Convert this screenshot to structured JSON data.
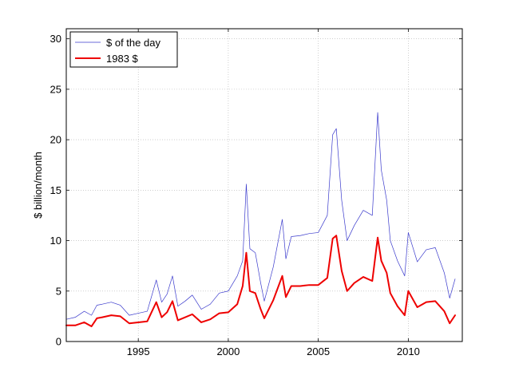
{
  "chart_data": {
    "type": "line",
    "title": "",
    "xlabel": "",
    "ylabel": "$ billion/month",
    "xlim": [
      1991.0,
      2013.0
    ],
    "ylim": [
      0,
      31
    ],
    "x_ticks": [
      1995,
      2000,
      2005,
      2010
    ],
    "y_ticks": [
      0,
      5,
      10,
      15,
      20,
      25,
      30
    ],
    "grid": true,
    "legend_position": "top-left",
    "series": [
      {
        "name": "$ of the day",
        "color": "#3a3acc",
        "line_width": "thin",
        "x": [
          1991.0,
          1991.5,
          1992.0,
          1992.4,
          1992.7,
          1993.0,
          1993.5,
          1994.0,
          1994.5,
          1995.0,
          1995.5,
          1996.0,
          1996.3,
          1996.6,
          1996.9,
          1997.2,
          1997.6,
          1998.0,
          1998.5,
          1999.0,
          1999.5,
          2000.0,
          2000.5,
          2000.8,
          2001.0,
          2001.2,
          2001.5,
          2001.8,
          2002.0,
          2002.5,
          2003.0,
          2003.2,
          2003.5,
          2004.0,
          2004.5,
          2005.0,
          2005.5,
          2005.8,
          2006.0,
          2006.3,
          2006.6,
          2007.0,
          2007.5,
          2008.0,
          2008.3,
          2008.5,
          2008.8,
          2009.0,
          2009.4,
          2009.8,
          2010.0,
          2010.5,
          2011.0,
          2011.5,
          2012.0,
          2012.3,
          2012.6
        ],
        "y": [
          2.2,
          2.4,
          3.0,
          2.6,
          3.6,
          3.7,
          3.9,
          3.6,
          2.6,
          2.8,
          3.0,
          6.1,
          3.9,
          4.7,
          6.5,
          3.5,
          4.0,
          4.6,
          3.2,
          3.7,
          4.8,
          5.0,
          6.5,
          8.0,
          15.6,
          9.2,
          8.8,
          5.8,
          4.0,
          7.4,
          12.1,
          8.2,
          10.4,
          10.5,
          10.7,
          10.8,
          12.5,
          20.5,
          21.1,
          14.0,
          10.0,
          11.5,
          13.0,
          12.5,
          22.7,
          17.0,
          14.0,
          10.0,
          8.0,
          6.5,
          10.8,
          7.9,
          9.1,
          9.3,
          6.8,
          4.3,
          6.2
        ]
      },
      {
        "name": "1983 $",
        "color": "#ee0000",
        "line_width": "thick",
        "x": [
          1991.0,
          1991.5,
          1992.0,
          1992.4,
          1992.7,
          1993.0,
          1993.5,
          1994.0,
          1994.5,
          1995.0,
          1995.5,
          1996.0,
          1996.3,
          1996.6,
          1996.9,
          1997.2,
          1997.6,
          1998.0,
          1998.5,
          1999.0,
          1999.5,
          2000.0,
          2000.5,
          2000.8,
          2001.0,
          2001.2,
          2001.5,
          2001.8,
          2002.0,
          2002.5,
          2003.0,
          2003.2,
          2003.5,
          2004.0,
          2004.5,
          2005.0,
          2005.5,
          2005.8,
          2006.0,
          2006.3,
          2006.6,
          2007.0,
          2007.5,
          2008.0,
          2008.3,
          2008.5,
          2008.8,
          2009.0,
          2009.4,
          2009.8,
          2010.0,
          2010.5,
          2011.0,
          2011.5,
          2012.0,
          2012.3,
          2012.6
        ],
        "y": [
          1.6,
          1.6,
          1.9,
          1.5,
          2.3,
          2.4,
          2.6,
          2.5,
          1.8,
          1.9,
          2.0,
          3.9,
          2.4,
          2.9,
          4.0,
          2.1,
          2.4,
          2.7,
          1.9,
          2.2,
          2.8,
          2.9,
          3.7,
          5.5,
          8.8,
          5.0,
          4.8,
          3.2,
          2.3,
          4.1,
          6.5,
          4.4,
          5.5,
          5.5,
          5.6,
          5.6,
          6.3,
          10.2,
          10.5,
          7.0,
          5.0,
          5.8,
          6.4,
          6.0,
          10.3,
          8.0,
          6.8,
          4.8,
          3.5,
          2.6,
          5.0,
          3.4,
          3.9,
          4.0,
          3.0,
          1.8,
          2.6
        ]
      }
    ]
  }
}
